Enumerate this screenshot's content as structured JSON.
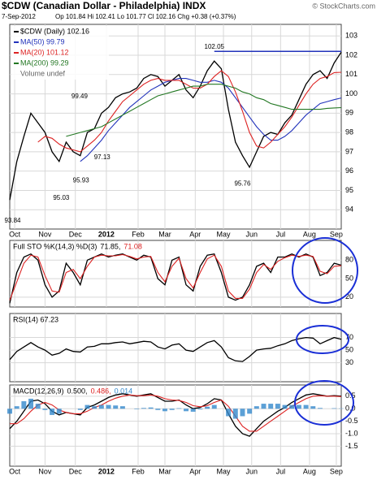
{
  "chart_data": [
    {
      "type": "line",
      "title": "$CDW (Canadian Dollar - Philadelphia) INDX",
      "source": "© StockCharts.com",
      "subtitle": "7-Sep-2012",
      "ohlc": "Op 101.84 Hi 102.41 Lo 101.77 Cl 102.16 Chg +0.38 (+0.37%)",
      "x": [
        0,
        1,
        2,
        3,
        4,
        5,
        6,
        7,
        8,
        9,
        10,
        11,
        12,
        13,
        14,
        15,
        16,
        17,
        18,
        19,
        20,
        21,
        22,
        23,
        24,
        25,
        26,
        27,
        28,
        29,
        30,
        31,
        32,
        33,
        34,
        35,
        36,
        37,
        38,
        39,
        40,
        41,
        42,
        43,
        44,
        45,
        46,
        47
      ],
      "xlim": [
        0,
        47
      ],
      "xticks": [
        {
          "value": 0.7,
          "label": "Oct"
        },
        {
          "value": 5,
          "label": "Nov"
        },
        {
          "value": 9.3,
          "label": "Dec"
        },
        {
          "value": 13.7,
          "label": "2012"
        },
        {
          "value": 18.2,
          "label": "Feb"
        },
        {
          "value": 22,
          "label": "Mar"
        },
        {
          "value": 26.3,
          "label": "Apr"
        },
        {
          "value": 30.3,
          "label": "May"
        },
        {
          "value": 34.3,
          "label": "Jun"
        },
        {
          "value": 38.4,
          "label": "Jul"
        },
        {
          "value": 42.5,
          "label": "Aug"
        },
        {
          "value": 46.3,
          "label": "Sep"
        }
      ],
      "ylim": [
        93,
        103.6
      ],
      "yticks": [
        94,
        95,
        96,
        97,
        98,
        99,
        100,
        101,
        102,
        103
      ],
      "grid": true,
      "series": [
        {
          "name": "$CDW (Daily) 102.16",
          "color": "#000000",
          "values": [
            94.5,
            96.5,
            97.8,
            99.0,
            98.5,
            98.0,
            97.0,
            96.5,
            97.5,
            97.0,
            96.8,
            98.0,
            98.2,
            99.0,
            99.3,
            99.8,
            100.0,
            100.1,
            100.3,
            100.8,
            101.0,
            100.9,
            100.4,
            100.7,
            101.0,
            100.2,
            99.8,
            100.4,
            101.2,
            101.7,
            101.3,
            99.2,
            97.5,
            96.8,
            96.2,
            97.0,
            97.8,
            98.0,
            97.9,
            98.5,
            98.9,
            99.7,
            100.5,
            101.0,
            101.2,
            100.8,
            101.6,
            102.16
          ]
        },
        {
          "name": "MA(50) 99.79",
          "color": "#2233bb",
          "values": [
            null,
            null,
            null,
            null,
            null,
            null,
            null,
            null,
            null,
            null,
            96.5,
            96.8,
            97.2,
            97.6,
            98.1,
            98.5,
            98.9,
            99.3,
            99.6,
            99.9,
            100.2,
            100.4,
            100.6,
            100.7,
            100.8,
            100.8,
            100.7,
            100.6,
            100.6,
            100.7,
            100.6,
            100.3,
            99.8,
            99.3,
            98.8,
            98.3,
            97.9,
            97.6,
            97.6,
            97.8,
            98.1,
            98.5,
            98.9,
            99.2,
            99.5,
            99.6,
            99.7,
            99.79
          ]
        },
        {
          "name": "MA(20) 101.12",
          "color": "#dd2222",
          "values": [
            null,
            null,
            null,
            null,
            97.5,
            97.8,
            97.7,
            97.4,
            97.2,
            97.1,
            97.0,
            97.3,
            97.6,
            98.0,
            98.6,
            99.1,
            99.6,
            99.9,
            100.2,
            100.5,
            100.7,
            100.8,
            100.7,
            100.7,
            100.7,
            100.5,
            100.3,
            100.3,
            100.5,
            100.9,
            101.2,
            100.9,
            100.1,
            99.1,
            98.0,
            97.3,
            97.2,
            97.5,
            97.9,
            98.3,
            98.8,
            99.4,
            100.0,
            100.5,
            100.8,
            100.9,
            101.1,
            101.12
          ]
        },
        {
          "name": "MA(200) 99.29",
          "color": "#227722",
          "values": [
            null,
            null,
            null,
            null,
            null,
            null,
            null,
            null,
            97.8,
            97.9,
            98.0,
            98.1,
            98.2,
            98.3,
            98.5,
            98.7,
            98.9,
            99.1,
            99.3,
            99.5,
            99.7,
            99.9,
            100.0,
            100.1,
            100.2,
            100.3,
            100.4,
            100.4,
            100.5,
            100.5,
            100.5,
            100.4,
            100.3,
            100.1,
            100.0,
            99.8,
            99.7,
            99.5,
            99.4,
            99.3,
            99.2,
            99.2,
            99.2,
            99.2,
            99.2,
            99.25,
            99.27,
            99.29
          ]
        }
      ],
      "legend_extra": "Volume undef",
      "hline": {
        "value": 102.2,
        "x": [
          29,
          47
        ],
        "color": "#2233bb"
      },
      "annotations": [
        {
          "x": 0.4,
          "value": 93.84
        },
        {
          "x": 7.3,
          "value": 95.03
        },
        {
          "x": 10.1,
          "value": 95.93
        },
        {
          "x": 13.1,
          "value": 97.13
        },
        {
          "x": 9.9,
          "value": 99.49
        },
        {
          "x": 29,
          "value": 102.05
        },
        {
          "x": 33,
          "value": 95.76
        }
      ]
    },
    {
      "type": "line",
      "title": "Full STO %K(14,3) %D(3)",
      "ylim": [
        4,
        112
      ],
      "yticks": [
        20,
        50,
        80
      ],
      "grid": true,
      "series": [
        {
          "name": "71.85,",
          "color": "#000000",
          "values": [
            10,
            60,
            85,
            90,
            80,
            40,
            20,
            30,
            75,
            60,
            40,
            80,
            85,
            90,
            85,
            88,
            90,
            85,
            80,
            88,
            85,
            50,
            40,
            80,
            85,
            40,
            30,
            70,
            88,
            90,
            60,
            20,
            15,
            20,
            40,
            70,
            75,
            60,
            85,
            85,
            90,
            85,
            90,
            85,
            55,
            60,
            75,
            71.85
          ]
        },
        {
          "name": "71.08",
          "color": "#dd2222",
          "values": [
            15,
            45,
            75,
            88,
            85,
            55,
            30,
            28,
            60,
            65,
            50,
            70,
            85,
            88,
            87,
            87,
            89,
            86,
            82,
            85,
            86,
            60,
            45,
            70,
            83,
            50,
            35,
            60,
            82,
            88,
            70,
            30,
            18,
            18,
            33,
            60,
            73,
            65,
            78,
            84,
            88,
            86,
            88,
            86,
            62,
            58,
            70,
            71.08
          ]
        }
      ]
    },
    {
      "type": "line",
      "title": "RSI(14) 67.23",
      "ylim": [
        0,
        108
      ],
      "yticks": [
        30,
        50,
        70
      ],
      "grid": true,
      "series": [
        {
          "color": "#000000",
          "values": [
            35,
            48,
            55,
            62,
            55,
            50,
            42,
            45,
            52,
            48,
            47,
            55,
            56,
            60,
            60,
            62,
            63,
            60,
            62,
            64,
            63,
            55,
            52,
            58,
            60,
            50,
            48,
            55,
            62,
            65,
            55,
            38,
            33,
            32,
            40,
            50,
            52,
            53,
            57,
            60,
            65,
            68,
            70,
            69,
            60,
            65,
            70,
            67.23
          ]
        }
      ]
    },
    {
      "type": "line",
      "title": "MACD(12,26,9)",
      "ylim": [
        -2.3,
        0.95
      ],
      "yticks": [
        0.5,
        {
          "value": 0,
          "label": "0.0"
        },
        -0.5,
        {
          "value": -1,
          "label": "-1.0"
        },
        -1.5
      ],
      "grid": true,
      "xticks": [
        {
          "value": 0.7,
          "label": "Oct"
        },
        {
          "value": 5,
          "label": "Nov"
        },
        {
          "value": 9.3,
          "label": "Dec"
        },
        {
          "value": 13.7,
          "label": "2012"
        },
        {
          "value": 18.2,
          "label": "Feb"
        },
        {
          "value": 22,
          "label": "Mar"
        },
        {
          "value": 26.3,
          "label": "Apr"
        },
        {
          "value": 30.3,
          "label": "May"
        },
        {
          "value": 34.3,
          "label": "Jun"
        },
        {
          "value": 38.4,
          "label": "Jul"
        },
        {
          "value": 42.5,
          "label": "Aug"
        },
        {
          "value": 46.3,
          "label": "Sep"
        }
      ],
      "series": [
        {
          "name": "0.500,",
          "color": "#000000",
          "values": [
            -0.8,
            -0.5,
            -0.1,
            0.3,
            0.35,
            0.2,
            -0.1,
            -0.25,
            -0.15,
            -0.2,
            -0.25,
            0.05,
            0.15,
            0.3,
            0.45,
            0.55,
            0.6,
            0.55,
            0.5,
            0.55,
            0.6,
            0.45,
            0.3,
            0.3,
            0.35,
            0.15,
            0,
            0.05,
            0.2,
            0.4,
            0.35,
            -0.2,
            -0.7,
            -1.0,
            -1.1,
            -0.8,
            -0.5,
            -0.3,
            -0.1,
            0.05,
            0.25,
            0.4,
            0.55,
            0.6,
            0.55,
            0.5,
            0.52,
            0.5
          ]
        },
        {
          "name": "0.486,",
          "color": "#dd2222",
          "values": [
            -0.6,
            -0.6,
            -0.4,
            -0.1,
            0.15,
            0.25,
            0.15,
            -0.05,
            -0.15,
            -0.2,
            -0.2,
            -0.1,
            0.05,
            0.15,
            0.3,
            0.42,
            0.5,
            0.55,
            0.52,
            0.52,
            0.55,
            0.5,
            0.4,
            0.35,
            0.33,
            0.25,
            0.12,
            0.08,
            0.12,
            0.25,
            0.35,
            0.1,
            -0.3,
            -0.7,
            -0.9,
            -0.9,
            -0.7,
            -0.5,
            -0.3,
            -0.1,
            0.1,
            0.25,
            0.4,
            0.5,
            0.52,
            0.5,
            0.5,
            0.486
          ]
        },
        {
          "name": "0.014",
          "type": "bar",
          "color": "#3388cc",
          "values": [
            -0.2,
            0.1,
            0.3,
            0.4,
            0.2,
            -0.05,
            -0.25,
            -0.2,
            0,
            0,
            -0.05,
            0.15,
            0.1,
            0.15,
            0.15,
            0.13,
            0.1,
            0,
            -0.02,
            0.03,
            0.05,
            -0.05,
            -0.1,
            -0.05,
            0.02,
            -0.1,
            -0.12,
            -0.03,
            0.08,
            0.15,
            0,
            -0.3,
            -0.4,
            -0.3,
            -0.2,
            0.1,
            0.2,
            0.2,
            0.2,
            0.15,
            0.15,
            0.15,
            0.15,
            0.1,
            0.03,
            0,
            0.02,
            0.014
          ]
        }
      ]
    }
  ]
}
